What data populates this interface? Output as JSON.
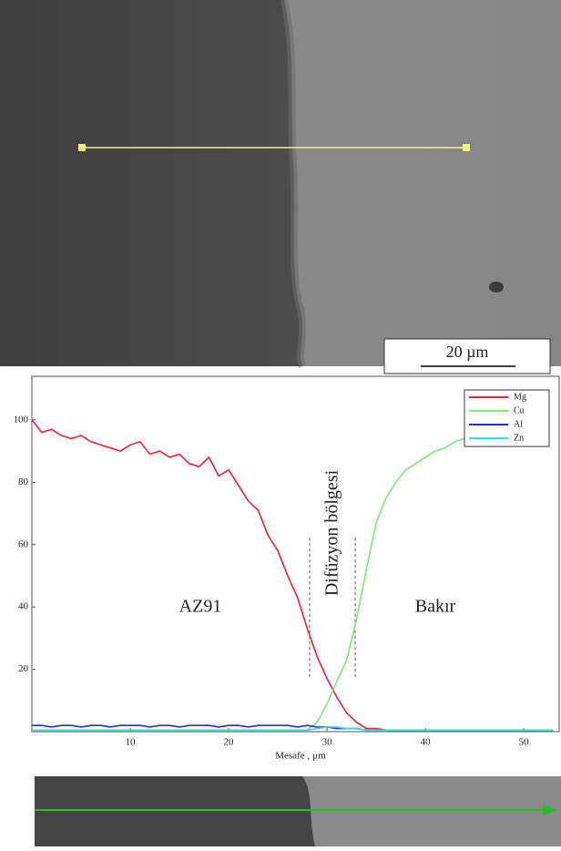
{
  "image": {
    "scale_bar": "20 µm"
  },
  "chart_data": {
    "type": "line",
    "x_label": "Mesafe , µm",
    "annotations": [
      "AZ91",
      "Difüzyon bölgesi",
      "Bakır"
    ],
    "x": [
      0,
      1,
      2,
      3,
      4,
      5,
      6,
      7,
      8,
      9,
      10,
      11,
      12,
      13,
      14,
      15,
      16,
      17,
      18,
      19,
      20,
      21,
      22,
      23,
      24,
      25,
      26,
      27,
      28,
      29,
      30,
      31,
      32,
      33,
      34,
      35,
      36,
      37,
      38,
      39,
      40,
      41,
      42,
      43,
      44,
      45,
      46,
      47,
      48,
      49,
      50,
      51,
      52,
      53
    ],
    "series": [
      {
        "name": "Mg",
        "color": "#e8213a",
        "values": [
          100,
          96,
          97,
          95,
          94,
          95,
          93,
          92,
          91,
          90,
          92,
          93,
          89,
          90,
          88,
          89,
          86,
          85,
          88,
          82,
          84,
          79,
          74,
          71,
          63,
          58,
          50,
          43,
          33,
          24,
          17,
          11,
          6,
          3,
          1,
          1,
          0.5,
          0.5,
          0.5,
          0.5,
          0.5,
          0.5,
          0.5,
          0.5,
          0.5,
          0.5,
          0.5,
          0.5,
          0.5,
          0.5,
          0.5,
          0.5,
          0.5,
          0.5
        ]
      },
      {
        "name": "Cu",
        "color": "#7de87a",
        "values": [
          0.5,
          0.5,
          0.5,
          0.5,
          0.5,
          0.5,
          0.5,
          0.5,
          0.5,
          0.5,
          0.5,
          0.5,
          0.5,
          0.5,
          0.5,
          0.5,
          0.5,
          0.5,
          0.5,
          0.5,
          0.5,
          0.5,
          0.5,
          0.5,
          0.5,
          0.5,
          0.5,
          0.5,
          0.5,
          3,
          9,
          16,
          23,
          36,
          52,
          67,
          75,
          80,
          84,
          86,
          88,
          90,
          91,
          93,
          94,
          96,
          95,
          null,
          null,
          null,
          null,
          null,
          null,
          null
        ]
      },
      {
        "name": "Al",
        "color": "#2b2bd0",
        "values": [
          2,
          2,
          1.5,
          2,
          2,
          1.5,
          2,
          2,
          1.5,
          2,
          2,
          2,
          1.5,
          2,
          2,
          1.5,
          2,
          2,
          2,
          1.5,
          2,
          2,
          1.5,
          2,
          2,
          2,
          2,
          1.5,
          2,
          1.5,
          1.5,
          1,
          1,
          1,
          0.5,
          0.5,
          0.5,
          0.5,
          0.5,
          0.5,
          0.5,
          0.5,
          0.5,
          0.5,
          0.5,
          0.5,
          0.5,
          0.5,
          0.5,
          0.5,
          0.5,
          0.5,
          0.5,
          0.5
        ]
      },
      {
        "name": "Zn",
        "color": "#3fd6e0",
        "values": [
          0.5,
          0.5,
          0.5,
          0.5,
          0.5,
          0.5,
          0.5,
          0.5,
          0.5,
          0.5,
          0.5,
          0.5,
          0.5,
          0.5,
          0.5,
          0.5,
          0.5,
          0.5,
          0.5,
          0.5,
          0.5,
          0.5,
          0.5,
          0.5,
          0.5,
          0.5,
          0.5,
          0.5,
          0.5,
          1,
          1.5,
          1.5,
          1,
          1,
          0.5,
          0.5,
          0.5,
          0.5,
          0.5,
          0.5,
          0.5,
          0.5,
          0.5,
          0.5,
          0.5,
          0.5,
          0.5,
          0.5,
          0.5,
          0.5,
          0.5,
          0.5,
          0.5,
          0.5
        ]
      }
    ],
    "xlim": [
      0,
      53.6
    ],
    "ylim": [
      0,
      114
    ],
    "xticks": [
      10,
      20,
      30,
      40,
      50
    ],
    "yticks": [
      20,
      40,
      60,
      80,
      100
    ],
    "legend": "top-right"
  }
}
